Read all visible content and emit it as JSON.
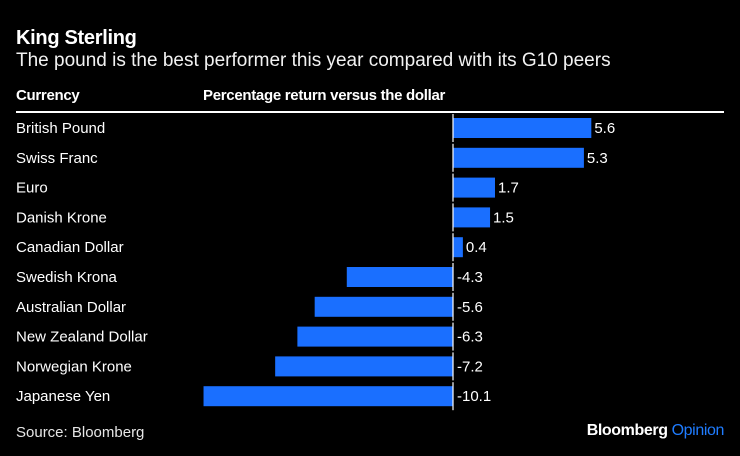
{
  "header": {
    "title": "King Sterling",
    "subtitle": "The pound is the best performer this year compared with its G10 peers",
    "col_currency": "Currency",
    "col_return": "Percentage return versus the dollar"
  },
  "footer": {
    "source": "Source: Bloomberg",
    "brand_main": "Bloomberg",
    "brand_accent": "Opinion"
  },
  "colors": {
    "bar": "#1a6fff",
    "accent": "#1f7cff",
    "background": "#000000"
  },
  "chart_data": {
    "type": "bar",
    "orientation": "horizontal",
    "title": "King Sterling",
    "subtitle": "The pound is the best performer this year compared with its G10 peers",
    "xlabel": "Percentage return versus the dollar",
    "ylabel": "Currency",
    "categories": [
      "British Pound",
      "Swiss Franc",
      "Euro",
      "Danish Krone",
      "Canadian Dollar",
      "Swedish Krona",
      "Australian Dollar",
      "New Zealand Dollar",
      "Norwegian Krone",
      "Japanese Yen"
    ],
    "values": [
      5.6,
      5.3,
      1.7,
      1.5,
      0.4,
      -4.3,
      -5.6,
      -6.3,
      -7.2,
      -10.1
    ],
    "value_labels": [
      "5.6",
      "5.3",
      "1.7",
      "1.5",
      "0.4",
      "-4.3",
      "-5.6",
      "-6.3",
      "-7.2",
      "-10.1"
    ],
    "xlim": [
      -10.1,
      5.6
    ],
    "grid": false,
    "legend": "none",
    "source": "Source: Bloomberg"
  }
}
